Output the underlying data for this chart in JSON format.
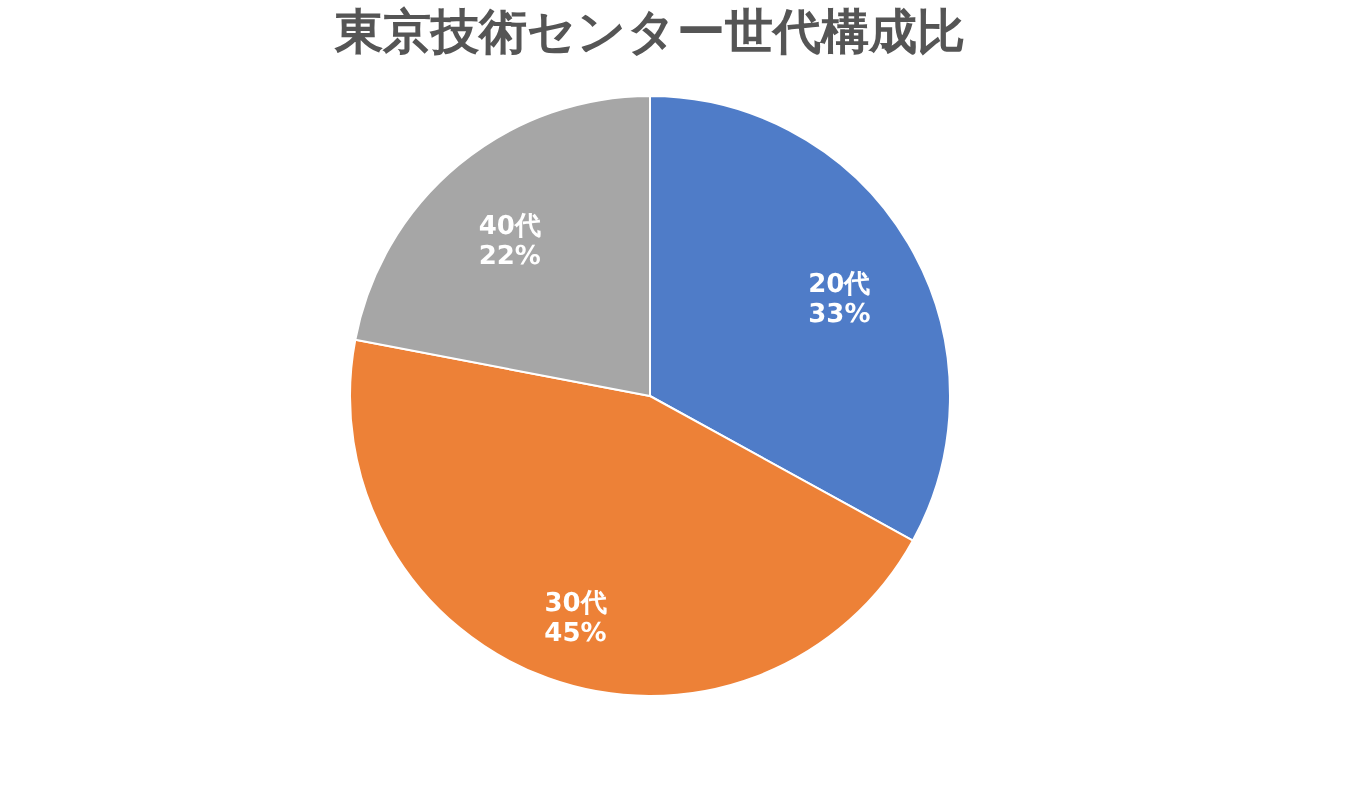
{
  "chart_data": {
    "type": "pie",
    "title": "東京技術センター世代構成比",
    "categories": [
      "20代",
      "30代",
      "40代"
    ],
    "values": [
      33,
      45,
      22
    ],
    "value_labels": [
      "33%",
      "45%",
      "22%"
    ],
    "colors": [
      "#4f7cc8",
      "#ed8137",
      "#a6a6a6"
    ],
    "legend": false
  }
}
